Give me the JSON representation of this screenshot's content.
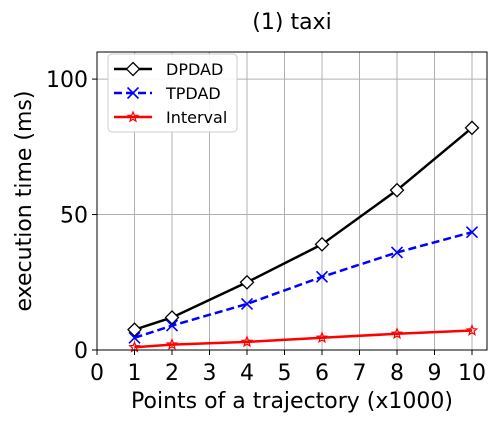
{
  "chart_data": {
    "type": "line",
    "title": "(1) taxi",
    "xlabel": "Points of a trajectory (x1000)",
    "ylabel": "execution time (ms)",
    "xlim": [
      0,
      10.4
    ],
    "ylim": [
      0,
      110
    ],
    "xticks": [
      0,
      1,
      2,
      3,
      4,
      5,
      6,
      7,
      8,
      9,
      10
    ],
    "yticks": [
      0,
      50,
      100
    ],
    "grid": true,
    "legend_position": "top-left",
    "x": [
      1,
      2,
      4,
      6,
      8,
      10
    ],
    "series": [
      {
        "name": "DPDAD",
        "color": "#000000",
        "dash": "solid",
        "marker": "diamond",
        "values": [
          7.5,
          12,
          25,
          39,
          59,
          82
        ]
      },
      {
        "name": "TPDAD",
        "color": "#0000ff",
        "dash": "dashed",
        "marker": "x",
        "values": [
          4.5,
          9,
          17,
          27,
          36,
          43.5
        ]
      },
      {
        "name": "Interval",
        "color": "#ff0000",
        "dash": "solid",
        "marker": "star",
        "values": [
          1,
          2,
          3,
          4.5,
          6,
          7.2
        ]
      }
    ]
  }
}
